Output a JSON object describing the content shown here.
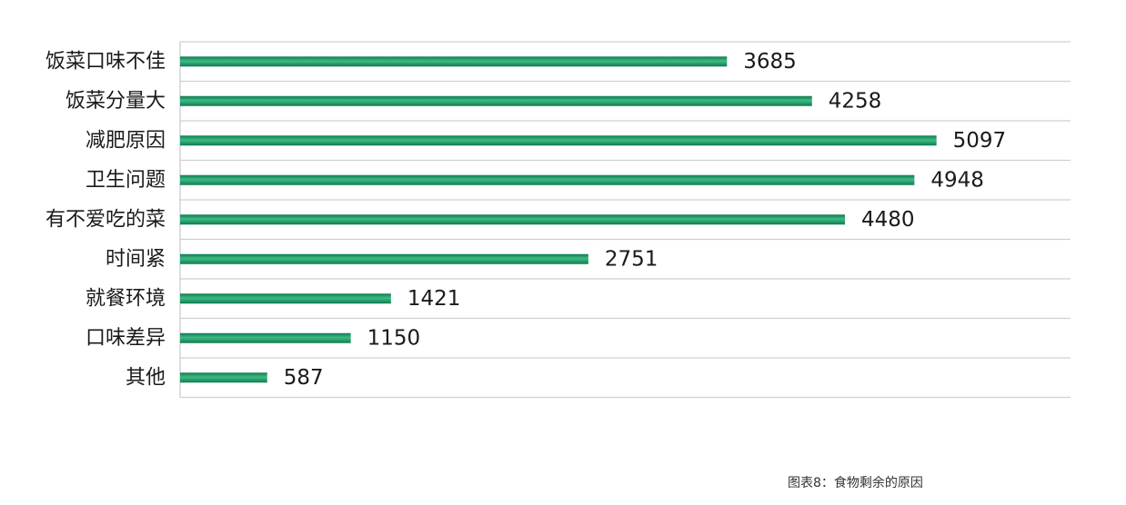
{
  "caption": "图表8：食物剩余的原因",
  "chart_data": {
    "type": "bar",
    "orientation": "horizontal",
    "categories": [
      "饭菜口味不佳",
      "饭菜分量大",
      "减肥原因",
      "卫生问题",
      "有不爱吃的菜",
      "时间紧",
      "就餐环境",
      "口味差异",
      "其他"
    ],
    "values": [
      3685,
      4258,
      5097,
      4948,
      4480,
      2751,
      1421,
      1150,
      587
    ],
    "title": "",
    "xlabel": "",
    "ylabel": "",
    "xlim": [
      0,
      6000
    ],
    "grid": true,
    "data_labels": true,
    "colors": {
      "bar": "#0f7a52",
      "bar_highlight": "#3dbb82",
      "grid": "#d0d0d0",
      "axis": "#c8c8c8"
    }
  }
}
